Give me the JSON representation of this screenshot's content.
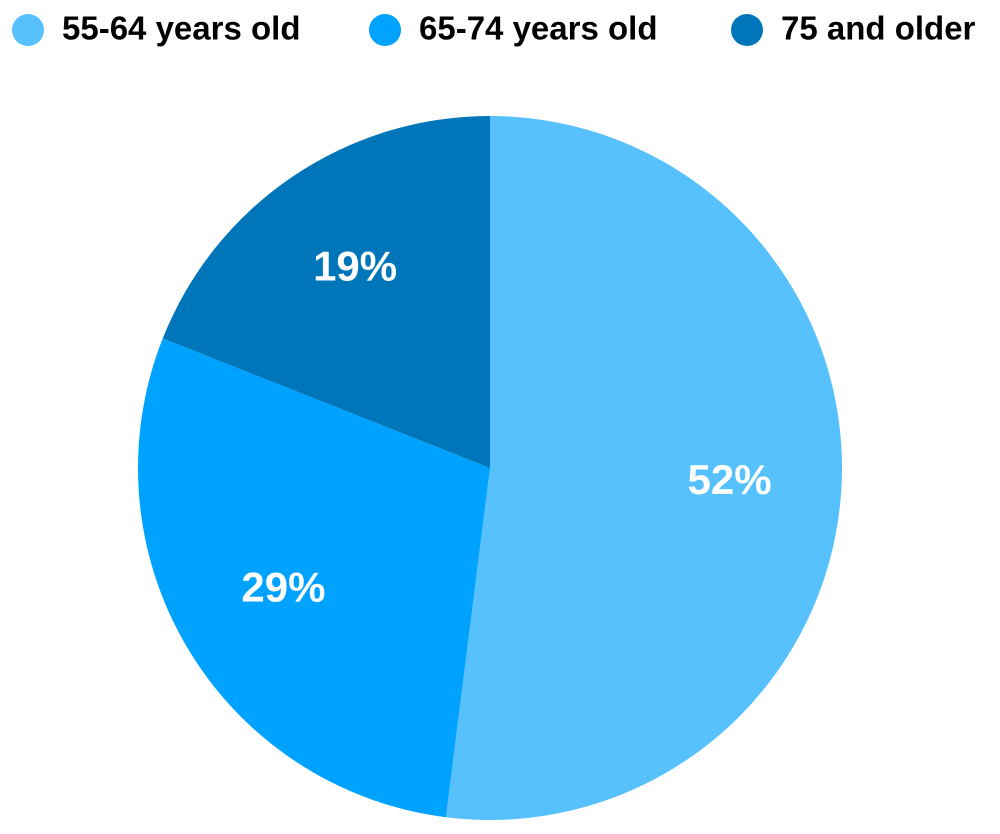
{
  "chart_data": {
    "type": "pie",
    "categories": [
      "55-64 years old",
      "65-74 years old",
      "75 and older"
    ],
    "values": [
      52,
      29,
      19
    ],
    "value_labels": [
      "52%",
      "29%",
      "19%"
    ],
    "colors": [
      "#57c1fe",
      "#00a2ff",
      "#0076ba"
    ],
    "legend": "top"
  }
}
